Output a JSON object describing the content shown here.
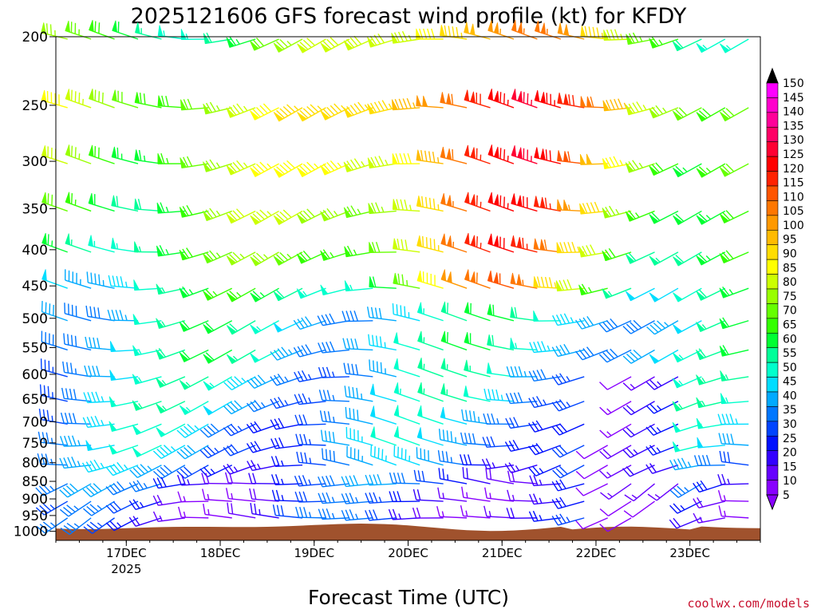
{
  "chart_data": {
    "type": "wind-barb-profile",
    "title": "2025121606 GFS forecast wind profile (kt) for KFDY",
    "xlabel": "Forecast Time (UTC)",
    "ylabel": "",
    "credit": "coolwx.com/models",
    "units": "kt",
    "x_ticks": [
      {
        "label": "17DEC",
        "sub": "2025",
        "hour": 18
      },
      {
        "label": "18DEC",
        "sub": "",
        "hour": 42
      },
      {
        "label": "19DEC",
        "sub": "",
        "hour": 66
      },
      {
        "label": "20DEC",
        "sub": "",
        "hour": 90
      },
      {
        "label": "21DEC",
        "sub": "",
        "hour": 114
      },
      {
        "label": "22DEC",
        "sub": "",
        "hour": 138
      },
      {
        "label": "23DEC",
        "sub": "",
        "hour": 162
      }
    ],
    "x_range_hours": [
      0,
      180
    ],
    "pressure_levels": [
      200,
      250,
      300,
      350,
      400,
      450,
      500,
      550,
      600,
      650,
      700,
      750,
      800,
      850,
      900,
      950,
      1000
    ],
    "y_range_hpa": [
      200,
      1030
    ],
    "colorbar_ticks": [
      150,
      145,
      140,
      135,
      130,
      125,
      120,
      115,
      110,
      105,
      100,
      95,
      90,
      85,
      80,
      75,
      70,
      65,
      60,
      55,
      50,
      45,
      40,
      35,
      30,
      25,
      20,
      15,
      10,
      5
    ],
    "colorbar_colors": [
      "#000000",
      "#ff00ff",
      "#ff00cc",
      "#ff0099",
      "#ff0066",
      "#ff0033",
      "#ff0000",
      "#ff2200",
      "#ff5500",
      "#ff7700",
      "#ff9900",
      "#ffbb00",
      "#ffdd00",
      "#ffff00",
      "#ccff00",
      "#99ff00",
      "#66ff00",
      "#33ff00",
      "#00ff33",
      "#00ff99",
      "#00ffcc",
      "#00ddff",
      "#00aaff",
      "#0077ff",
      "#0044ff",
      "#0011ff",
      "#3300ff",
      "#6600ff",
      "#8800ff"
    ],
    "surface_color": "#a0522d",
    "representative_speeds_kt": {
      "200": 65,
      "250": 80,
      "300": 75,
      "350": 70,
      "400": 65,
      "450": 55,
      "500": 50,
      "550": 50,
      "600": 45,
      "650": 45,
      "700": 40,
      "750": 40,
      "800": 35,
      "850": 30,
      "900": 25,
      "950": 25,
      "1000": 15
    }
  }
}
